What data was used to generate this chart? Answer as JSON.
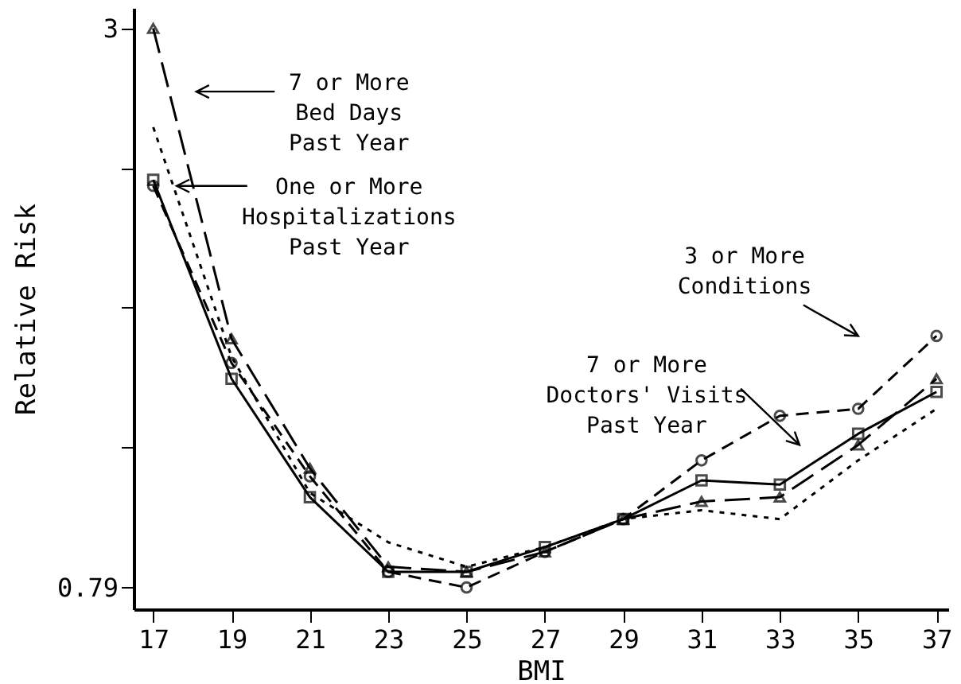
{
  "chart_data": {
    "type": "line",
    "xlabel": "BMI",
    "ylabel": "Relative Risk",
    "log": true,
    "x": [
      17,
      19,
      21,
      23,
      25,
      27,
      29,
      31,
      33,
      35,
      37
    ],
    "xlim": [
      16.5,
      37.3
    ],
    "xticks": [
      17,
      19,
      21,
      23,
      25,
      27,
      29,
      31,
      33,
      35,
      37
    ],
    "ylim": [
      0.75,
      3.15
    ],
    "yticks": [
      0.79,
      {
        "value": 1.103,
        "label": null
      },
      {
        "value": 1.54,
        "label": null
      },
      {
        "value": 2.15,
        "label": null
      },
      3
    ],
    "series": [
      {
        "color": "#000000",
        "marker": "triangle",
        "line_style": "longdash",
        "values": [
          3.0,
          1.43,
          1.05,
          0.83,
          0.82,
          0.86,
          0.93,
          0.97,
          0.98,
          1.11,
          1.3
        ]
      },
      {
        "color": "#000000",
        "marker": "circle",
        "line_style": "dashed",
        "values": [
          2.06,
          1.35,
          1.03,
          0.82,
          0.79,
          0.86,
          0.93,
          1.07,
          1.19,
          1.21,
          1.44
        ]
      },
      {
        "color": "#000000",
        "marker": "square",
        "line_style": "solid",
        "values": [
          2.09,
          1.3,
          0.98,
          0.82,
          0.82,
          0.87,
          0.93,
          1.02,
          1.01,
          1.14,
          1.26
        ]
      },
      {
        "color": "#000000",
        "marker": "none",
        "line_style": "dotted",
        "values": [
          2.37,
          1.37,
          0.99,
          0.88,
          0.83,
          0.87,
          0.93,
          0.95,
          0.93,
          1.07,
          1.21
        ]
      }
    ],
    "annotations": [
      "7 or More\nBed Days\nPast Year",
      "One or More\nHospitalizations\nPast Year",
      "3 or More\nConditions",
      "7 or More\nDoctors' Visits\nPast Year"
    ]
  }
}
